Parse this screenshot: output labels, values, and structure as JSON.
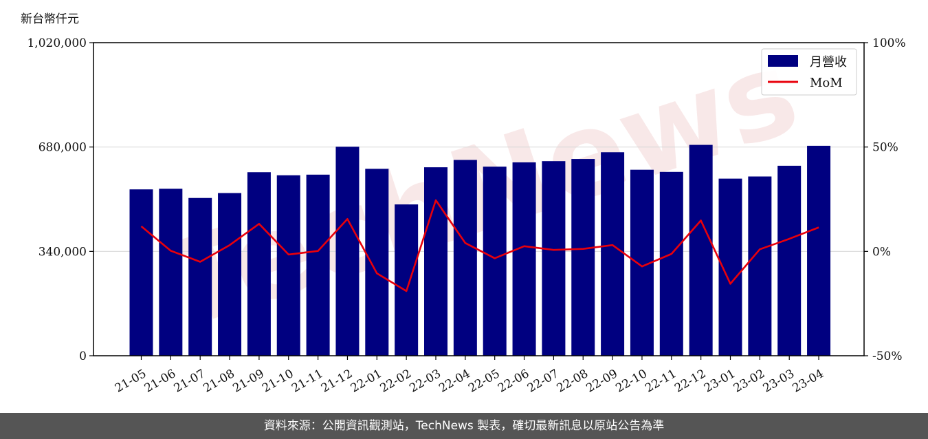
{
  "chart_data": {
    "type": "bar",
    "unit_label": "新台幣仟元",
    "categories": [
      "21-05",
      "21-06",
      "21-07",
      "21-08",
      "21-09",
      "21-10",
      "21-11",
      "21-12",
      "22-01",
      "22-02",
      "22-03",
      "22-04",
      "22-05",
      "22-06",
      "22-07",
      "22-08",
      "22-09",
      "22-10",
      "22-11",
      "22-12",
      "23-01",
      "23-02",
      "23-03",
      "23-04"
    ],
    "series": [
      {
        "name": "月營收",
        "type": "bar",
        "axis": "left",
        "color": "#000080",
        "values": [
          542000,
          544000,
          514000,
          530000,
          598000,
          588000,
          590000,
          681000,
          609000,
          493000,
          614000,
          638000,
          616000,
          630000,
          634000,
          641000,
          663000,
          606000,
          599000,
          687000,
          577000,
          584000,
          619000,
          684000
        ]
      },
      {
        "name": "MoM",
        "type": "line",
        "axis": "right",
        "color": "#e8000b",
        "values": [
          12,
          0.3,
          -5,
          3,
          13.2,
          -1.5,
          0.2,
          15.5,
          -10.5,
          -19,
          24.5,
          4,
          -3.3,
          2.5,
          0.7,
          1.2,
          3,
          -7.2,
          -1.2,
          14.8,
          -15.5,
          1,
          6,
          11.5
        ]
      }
    ],
    "left_axis": {
      "ylim": [
        0,
        1020000
      ],
      "ticks": [
        "0",
        "340,000",
        "680,000",
        "1,020,000"
      ]
    },
    "right_axis": {
      "ylim": [
        -50,
        100
      ],
      "ticks": [
        "-50%",
        "0%",
        "50%",
        "100%"
      ]
    },
    "grid": "horizontal",
    "legend_position": "top-right",
    "watermark": "TechNews"
  },
  "footer": {
    "text": "資料來源：公開資訊觀測站，TechNews 製表，確切最新訊息以原站公告為準"
  }
}
